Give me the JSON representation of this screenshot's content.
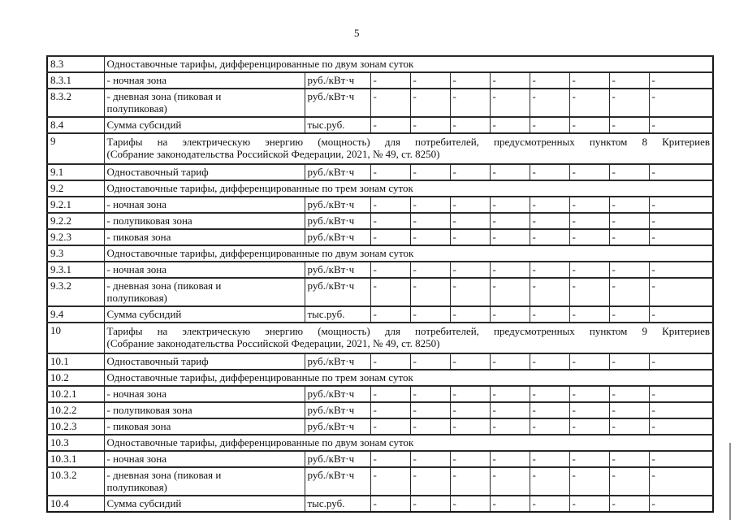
{
  "page_number": "5",
  "table": {
    "rows": [
      {
        "num": "8.3",
        "section": true,
        "text": [
          "Одноставочные тарифы, дифференцированные по двум зонам суток"
        ]
      },
      {
        "num": "8.3.1",
        "desc": [
          "- ночная зона"
        ],
        "unit": "руб./кВт·ч",
        "values": [
          "-",
          "-",
          "-",
          "-",
          "-",
          "-",
          "-",
          "-"
        ]
      },
      {
        "num": "8.3.2",
        "desc": [
          "- дневная зона (пиковая и",
          "полупиковая)"
        ],
        "unit": "руб./кВт·ч",
        "values": [
          "-",
          "-",
          "-",
          "-",
          "-",
          "-",
          "-",
          "-"
        ]
      },
      {
        "num": "8.4",
        "desc": [
          "Сумма субсидий"
        ],
        "unit": "тыс.руб.",
        "values": [
          "-",
          "-",
          "-",
          "-",
          "-",
          "-",
          "-",
          "-"
        ]
      },
      {
        "num": "9",
        "section": true,
        "justify": true,
        "text": [
          "Тарифы на электрическую энергию (мощность) для потребителей, предусмотренных пунктом 8 Критериев",
          "(Собрание законодательства Российской Федерации, 2021, № 49, ст. 8250)"
        ]
      },
      {
        "num": "9.1",
        "desc": [
          "Одноставочный тариф"
        ],
        "unit": "руб./кВт·ч",
        "values": [
          "-",
          "-",
          "-",
          "-",
          "-",
          "-",
          "-",
          "-"
        ]
      },
      {
        "num": "9.2",
        "section": true,
        "text": [
          "Одноставочные тарифы, дифференцированные по трем зонам суток"
        ]
      },
      {
        "num": "9.2.1",
        "desc": [
          "- ночная зона"
        ],
        "unit": "руб./кВт·ч",
        "values": [
          "-",
          "-",
          "-",
          "-",
          "-",
          "-",
          "-",
          "-"
        ]
      },
      {
        "num": "9.2.2",
        "desc": [
          "- полупиковая зона"
        ],
        "unit": "руб./кВт·ч",
        "values": [
          "-",
          "-",
          "-",
          "-",
          "-",
          "-",
          "-",
          "-"
        ]
      },
      {
        "num": "9.2.3",
        "desc": [
          "- пиковая зона"
        ],
        "unit": "руб./кВт·ч",
        "values": [
          "-",
          "-",
          "-",
          "-",
          "-",
          "-",
          "-",
          "-"
        ]
      },
      {
        "num": "9.3",
        "section": true,
        "text": [
          "Одноставочные тарифы, дифференцированные по двум зонам суток"
        ]
      },
      {
        "num": "9.3.1",
        "desc": [
          "- ночная зона"
        ],
        "unit": "руб./кВт·ч",
        "values": [
          "-",
          "-",
          "-",
          "-",
          "-",
          "-",
          "-",
          "-"
        ]
      },
      {
        "num": "9.3.2",
        "desc": [
          "- дневная зона (пиковая и",
          "полупиковая)"
        ],
        "unit": "руб./кВт·ч",
        "values": [
          "-",
          "-",
          "-",
          "-",
          "-",
          "-",
          "-",
          "-"
        ]
      },
      {
        "num": "9.4",
        "desc": [
          "Сумма субсидий"
        ],
        "unit": "тыс.руб.",
        "values": [
          "-",
          "-",
          "-",
          "-",
          "-",
          "-",
          "-",
          "-"
        ]
      },
      {
        "num": "10",
        "section": true,
        "justify": true,
        "text": [
          "Тарифы на электрическую энергию (мощность) для потребителей, предусмотренных пунктом 9 Критериев",
          "(Собрание законодательства Российской Федерации, 2021, № 49, ст. 8250)"
        ]
      },
      {
        "num": "10.1",
        "desc": [
          "Одноставочный тариф"
        ],
        "unit": "руб./кВт·ч",
        "values": [
          "-",
          "-",
          "-",
          "-",
          "-",
          "-",
          "-",
          "-"
        ]
      },
      {
        "num": "10.2",
        "section": true,
        "text": [
          "Одноставочные тарифы, дифференцированные по трем зонам суток"
        ]
      },
      {
        "num": "10.2.1",
        "desc": [
          "- ночная зона"
        ],
        "unit": "руб./кВт·ч",
        "values": [
          "-",
          "-",
          "-",
          "-",
          "-",
          "-",
          "-",
          "-"
        ]
      },
      {
        "num": "10.2.2",
        "desc": [
          "- полупиковая зона"
        ],
        "unit": "руб./кВт·ч",
        "values": [
          "-",
          "-",
          "-",
          "-",
          "-",
          "-",
          "-",
          "-"
        ]
      },
      {
        "num": "10.2.3",
        "desc": [
          "- пиковая зона"
        ],
        "unit": "руб./кВт·ч",
        "values": [
          "-",
          "-",
          "-",
          "-",
          "-",
          "-",
          "-",
          "-"
        ]
      },
      {
        "num": "10.3",
        "section": true,
        "text": [
          "Одноставочные тарифы, дифференцированные по двум зонам суток"
        ]
      },
      {
        "num": "10.3.1",
        "desc": [
          "- ночная зона"
        ],
        "unit": "руб./кВт·ч",
        "values": [
          "-",
          "-",
          "-",
          "-",
          "-",
          "-",
          "-",
          "-"
        ]
      },
      {
        "num": "10.3.2",
        "desc": [
          "- дневная зона (пиковая и",
          "полупиковая)"
        ],
        "unit": "руб./кВт·ч",
        "values": [
          "-",
          "-",
          "-",
          "-",
          "-",
          "-",
          "-",
          "-"
        ]
      },
      {
        "num": "10.4",
        "desc": [
          "Сумма субсидий"
        ],
        "unit": "тыс.руб.",
        "values": [
          "-",
          "-",
          "-",
          "-",
          "-",
          "-",
          "-",
          "-"
        ]
      }
    ]
  }
}
